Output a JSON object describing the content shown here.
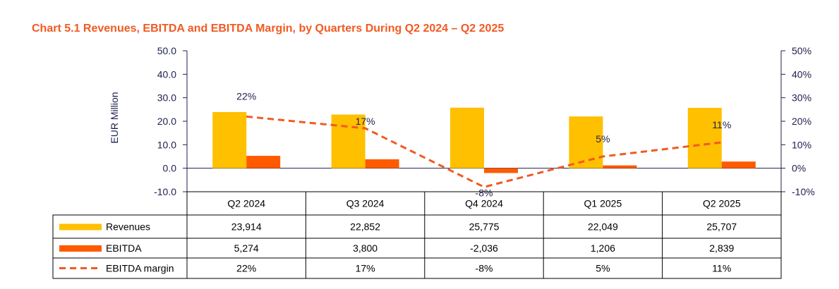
{
  "title": "Chart 5.1 Revenues, EBITDA and EBITDA Margin, by Quarters During Q2 2024 – Q2 2025",
  "colors": {
    "title": "#f15a22",
    "revenues": "#ffc000",
    "ebitda": "#ff5a00",
    "margin": "#f15a22",
    "axis": "#1f1f4f"
  },
  "chart_data": {
    "type": "bar",
    "title": "Chart 5.1 Revenues, EBITDA and EBITDA Margin, by Quarters During Q2 2024 – Q2 2025",
    "categories": [
      "Q2 2024",
      "Q3 2024",
      "Q4 2024",
      "Q1 2025",
      "Q2 2025"
    ],
    "ylabel": "EUR Million",
    "ylim": [
      -10,
      50
    ],
    "yticks": [
      "50.0",
      "40.0",
      "30.0",
      "20.0",
      "10.0",
      "0.0",
      "-10.0"
    ],
    "y2lim": [
      -10,
      50
    ],
    "y2ticks": [
      "50%",
      "40%",
      "30%",
      "20%",
      "10%",
      "0%",
      "-10%"
    ],
    "grid": false,
    "legend": "table-bottom",
    "series": [
      {
        "name": "Revenues",
        "type": "bar",
        "axis": "left",
        "values": [
          23.914,
          22.852,
          25.775,
          22.049,
          25.707
        ],
        "table": [
          "23,914",
          "22,852",
          "25,775",
          "22,049",
          "25,707"
        ]
      },
      {
        "name": "EBITDA",
        "type": "bar",
        "axis": "left",
        "values": [
          5.274,
          3.8,
          -2.036,
          1.206,
          2.839
        ],
        "table": [
          "5,274",
          "3,800",
          "-2,036",
          "1,206",
          "2,839"
        ]
      },
      {
        "name": "EBITDA margin",
        "type": "line",
        "axis": "right",
        "values": [
          22,
          17,
          -8,
          5,
          11
        ],
        "labels": [
          "22%",
          "17%",
          "-8%",
          "5%",
          "11%"
        ],
        "table": [
          "22%",
          "17%",
          "-8%",
          "5%",
          "11%"
        ]
      }
    ]
  }
}
